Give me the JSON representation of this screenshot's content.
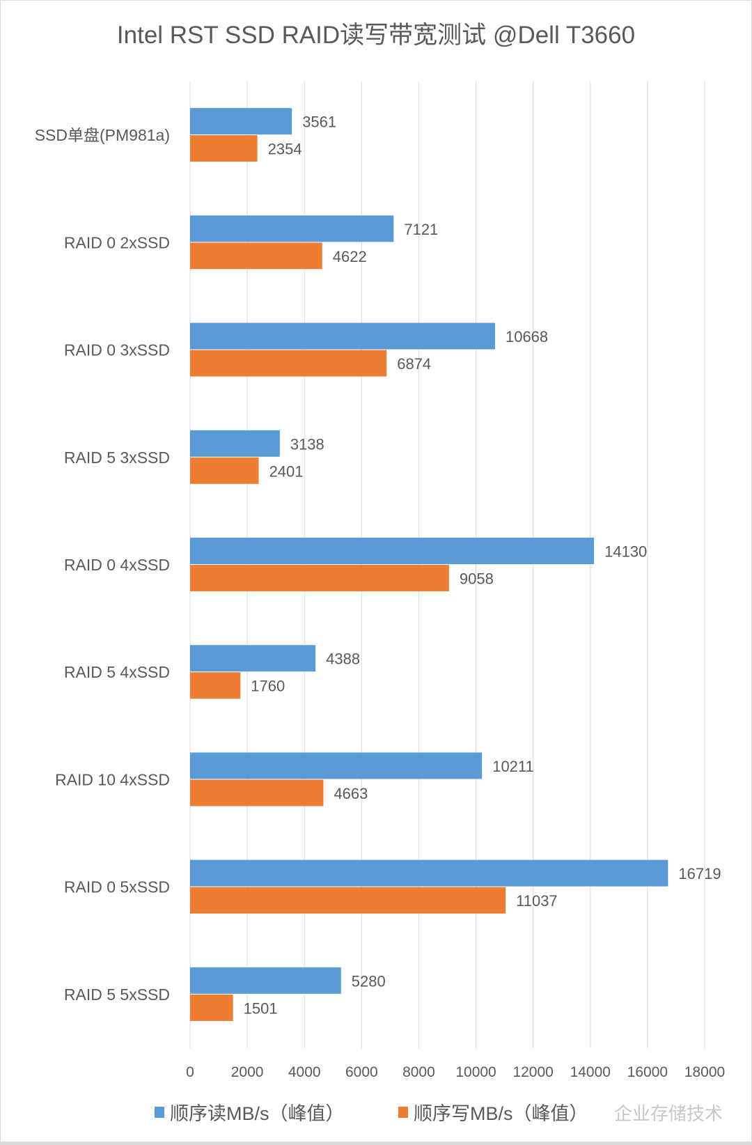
{
  "chart_data": {
    "type": "bar",
    "orientation": "horizontal",
    "title": "Intel RST SSD RAID读写带宽测试 @Dell T3660",
    "categories": [
      "SSD单盘(PM981a)",
      "RAID 0 2xSSD",
      "RAID 0 3xSSD",
      "RAID 5 3xSSD",
      "RAID 0 4xSSD",
      "RAID 5 4xSSD",
      "RAID 10 4xSSD",
      "RAID 0 5xSSD",
      "RAID 5 5xSSD"
    ],
    "series": [
      {
        "name": "顺序读MB/s（峰值）",
        "color": "#5b9bd5",
        "values": [
          3561,
          7121,
          10668,
          3138,
          14130,
          4388,
          10211,
          16719,
          5280
        ]
      },
      {
        "name": "顺序写MB/s（峰值）",
        "color": "#ed7d31",
        "values": [
          2354,
          4622,
          6874,
          2401,
          9058,
          1760,
          4663,
          11037,
          1501
        ]
      }
    ],
    "xlim": [
      0,
      18000
    ],
    "xticks": [
      0,
      2000,
      4000,
      6000,
      8000,
      10000,
      12000,
      14000,
      16000,
      18000
    ],
    "grid": true,
    "data_labels": true,
    "legend": "bottom",
    "watermark": "企业存储技术"
  }
}
